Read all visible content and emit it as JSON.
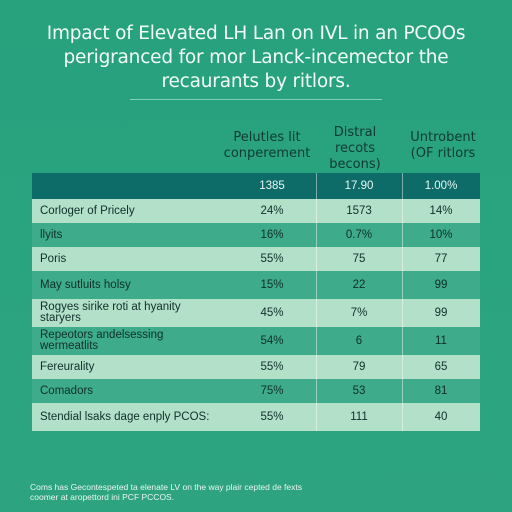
{
  "title": {
    "line1": "Impact of Elevated LH Lan on IVL in an PCOOs",
    "line2": "perigranced for mor Lanck-incemector the",
    "line3": "recaurants by ritlors."
  },
  "columns": {
    "c1": [
      "Pelutles lit",
      "conperement"
    ],
    "c2": [
      "Distral",
      "recots",
      "becons)"
    ],
    "c3": [
      "Untrobent",
      "(OF ritlors"
    ]
  },
  "header_row": [
    "",
    "1385",
    "17.90",
    "1.00%"
  ],
  "rows": [
    {
      "label": "Corloger of Pricely",
      "v1": "24%",
      "v2": "1573",
      "v3": "14%"
    },
    {
      "label": "llyits",
      "v1": "16%",
      "v2": "0.7%",
      "v3": "10%"
    },
    {
      "label": "Poris",
      "v1": "55%",
      "v2": "75",
      "v3": "77"
    },
    {
      "label": "May sutluits holsy",
      "v1": "15%",
      "v2": "22",
      "v3": "99"
    },
    {
      "label": "Rogyes sirike roti at hyanity staryers",
      "v1": "45%",
      "v2": "7%",
      "v3": "99"
    },
    {
      "label": "Repeotors andelsessing wermeatlits",
      "v1": "54%",
      "v2": "6",
      "v3": "11"
    },
    {
      "label": "Fereurality",
      "v1": "55%",
      "v2": "79",
      "v3": "65"
    },
    {
      "label": "Comadors",
      "v1": "75%",
      "v2": "53",
      "v3": "81"
    },
    {
      "label": "Stendial lsaks dage enply PCOS:",
      "v1": "55%",
      "v2": "111",
      "v3": "40"
    }
  ],
  "footnote": {
    "line1": "Coms has Gecontespeted ta elenate LV on the way plair cepted de fexts",
    "line2": "coomer at aropettord ini PCF PCCOS."
  },
  "colors": {
    "background": "#2aa37f",
    "header_bar": "#0d6b68",
    "row_light": "#b3e0c8",
    "row_dark": "#3eab8a"
  }
}
